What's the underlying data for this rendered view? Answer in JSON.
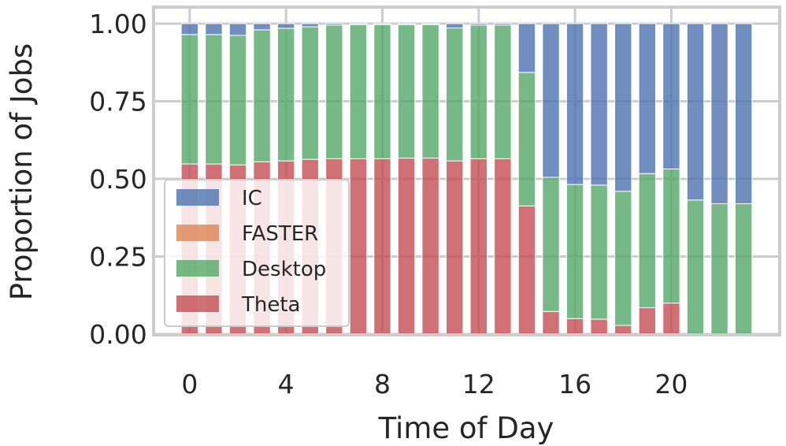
{
  "chart_data": {
    "type": "bar",
    "stacked": true,
    "normalized": true,
    "xlabel": "Time of Day",
    "ylabel": "Proportion of Jobs",
    "x": [
      0,
      1,
      2,
      3,
      4,
      5,
      6,
      7,
      8,
      9,
      10,
      11,
      12,
      13,
      14,
      15,
      16,
      17,
      18,
      19,
      20,
      21,
      22,
      23
    ],
    "xticks": [
      0,
      4,
      8,
      12,
      16,
      20
    ],
    "yticks": [
      "0.00",
      "0.25",
      "0.50",
      "0.75",
      "1.00"
    ],
    "yticks_values": [
      0,
      0.25,
      0.5,
      0.75,
      1.0
    ],
    "ylim": [
      0,
      1.0
    ],
    "xlim": [
      -1.5,
      24.5
    ],
    "grid": true,
    "legend_position": "lower-left",
    "series": [
      {
        "name": "Theta",
        "color": "#c44e52",
        "values": [
          0.548,
          0.548,
          0.545,
          0.555,
          0.558,
          0.563,
          0.565,
          0.565,
          0.565,
          0.567,
          0.567,
          0.558,
          0.565,
          0.565,
          0.413,
          0.073,
          0.05,
          0.048,
          0.028,
          0.085,
          0.1,
          0.0,
          0.0,
          0.0
        ]
      },
      {
        "name": "FASTER",
        "color": "#dd8452",
        "values": [
          0,
          0,
          0,
          0,
          0,
          0,
          0,
          0,
          0,
          0,
          0,
          0,
          0,
          0,
          0,
          0,
          0,
          0,
          0,
          0,
          0,
          0,
          0,
          0
        ]
      },
      {
        "name": "Desktop",
        "color": "#55a868",
        "values": [
          0.417,
          0.417,
          0.417,
          0.425,
          0.427,
          0.427,
          0.43,
          0.432,
          0.432,
          0.43,
          0.43,
          0.428,
          0.43,
          0.43,
          0.43,
          0.432,
          0.432,
          0.432,
          0.432,
          0.432,
          0.432,
          0.432,
          0.42,
          0.42
        ]
      },
      {
        "name": "IC",
        "color": "#4c72b0",
        "values": [
          0.035,
          0.035,
          0.038,
          0.02,
          0.015,
          0.01,
          0.005,
          0.003,
          0.003,
          0.003,
          0.003,
          0.014,
          0.005,
          0.005,
          0.157,
          0.495,
          0.518,
          0.52,
          0.54,
          0.483,
          0.468,
          0.568,
          0.58,
          0.58
        ]
      }
    ]
  },
  "legend": {
    "entries": [
      "IC",
      "FASTER",
      "Desktop",
      "Theta"
    ]
  }
}
